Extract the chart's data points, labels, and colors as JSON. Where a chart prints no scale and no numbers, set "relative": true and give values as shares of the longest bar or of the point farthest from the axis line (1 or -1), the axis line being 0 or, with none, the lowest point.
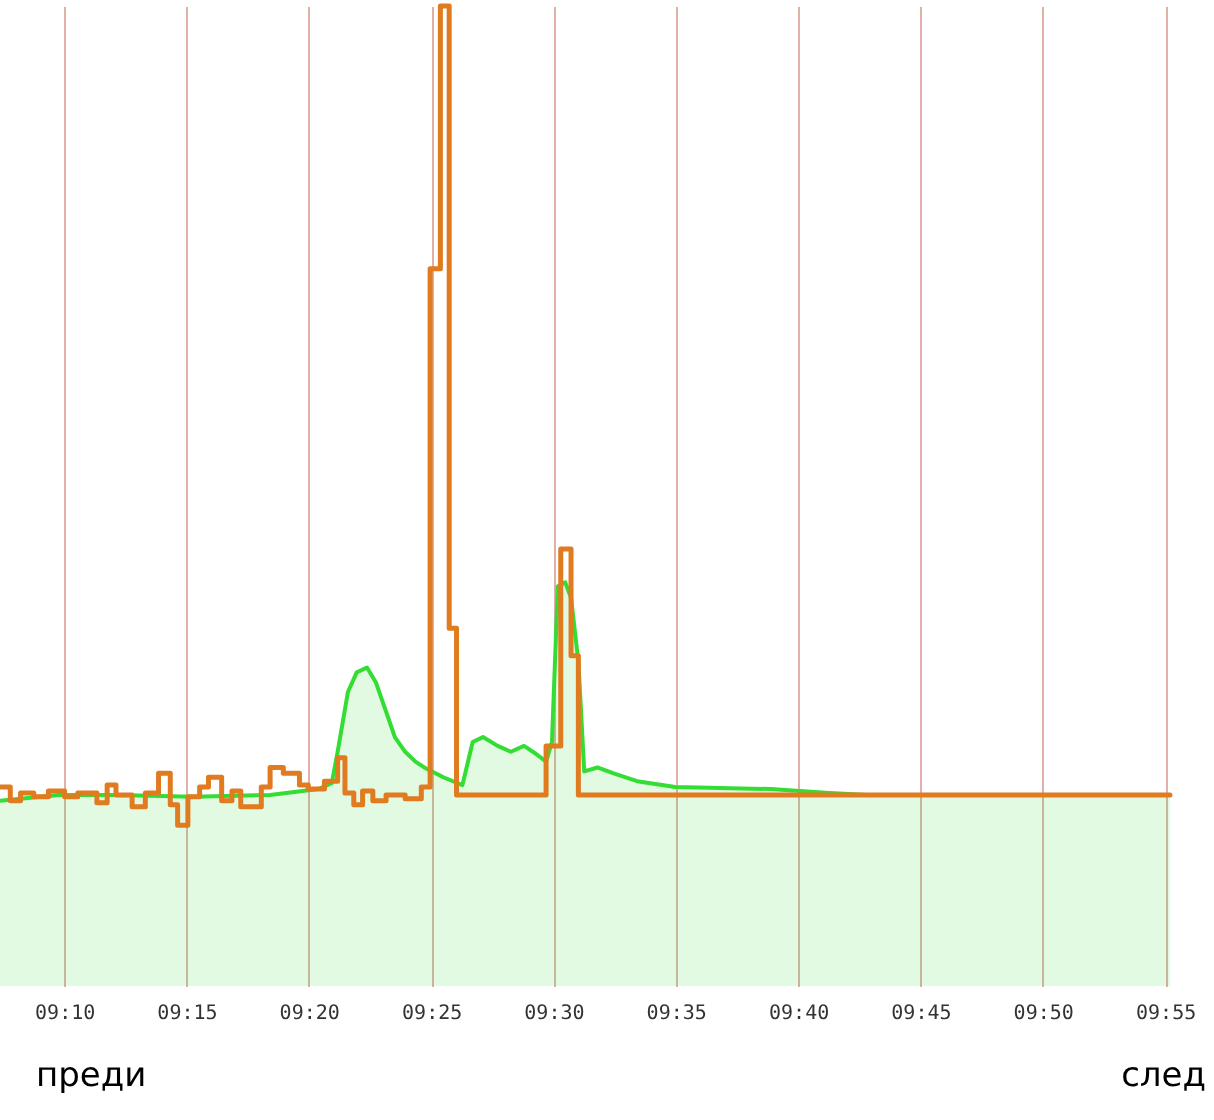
{
  "chart_data": {
    "type": "area",
    "relative": true,
    "xlim": [
      9.123,
      9.95
    ],
    "xticks": [
      {
        "value": 9.1667,
        "label": "09:10"
      },
      {
        "value": 9.25,
        "label": "09:15"
      },
      {
        "value": 9.3333,
        "label": "09:20"
      },
      {
        "value": 9.4167,
        "label": "09:25"
      },
      {
        "value": 9.5,
        "label": "09:30"
      },
      {
        "value": 9.5833,
        "label": "09:35"
      },
      {
        "value": 9.6667,
        "label": "09:40"
      },
      {
        "value": 9.75,
        "label": "09:45"
      },
      {
        "value": 9.8333,
        "label": "09:50"
      },
      {
        "value": 9.9167,
        "label": "09:55"
      }
    ],
    "grid": "x",
    "annotations": [
      "преди",
      "след"
    ],
    "series": [
      {
        "color": "#33dd33",
        "x": [
          9.123,
          9.163,
          9.202,
          9.255,
          9.307,
          9.34,
          9.349,
          9.353,
          9.36,
          9.366,
          9.373,
          9.379,
          9.386,
          9.392,
          9.399,
          9.406,
          9.412,
          9.425,
          9.438,
          9.445,
          9.452,
          9.462,
          9.471,
          9.48,
          9.488,
          9.495,
          9.499,
          9.503,
          9.508,
          9.512,
          9.517,
          9.521,
          9.53,
          9.541,
          9.557,
          9.583,
          9.648,
          9.688,
          9.714,
          9.92
        ],
        "values": [
          0.189,
          0.195,
          0.195,
          0.193,
          0.195,
          0.201,
          0.207,
          0.239,
          0.3,
          0.32,
          0.325,
          0.31,
          0.28,
          0.254,
          0.239,
          0.229,
          0.223,
          0.213,
          0.205,
          0.249,
          0.254,
          0.245,
          0.239,
          0.245,
          0.237,
          0.229,
          0.249,
          0.408,
          0.412,
          0.396,
          0.331,
          0.219,
          0.223,
          0.217,
          0.209,
          0.203,
          0.201,
          0.197,
          0.195,
          0.195
        ]
      },
      {
        "type": "step",
        "color": "#e07b20",
        "x": [
          9.123,
          9.13,
          9.137,
          9.146,
          9.156,
          9.167,
          9.176,
          9.189,
          9.196,
          9.202,
          9.213,
          9.222,
          9.231,
          9.239,
          9.244,
          9.251,
          9.259,
          9.265,
          9.274,
          9.281,
          9.287,
          9.301,
          9.307,
          9.316,
          9.327,
          9.333,
          9.344,
          9.353,
          9.358,
          9.364,
          9.37,
          9.377,
          9.386,
          9.399,
          9.41,
          9.416,
          9.423,
          9.429,
          9.434,
          9.495,
          9.505,
          9.512,
          9.517,
          9.92
        ],
        "values": [
          0.203,
          0.189,
          0.197,
          0.193,
          0.199,
          0.193,
          0.197,
          0.187,
          0.205,
          0.195,
          0.183,
          0.197,
          0.217,
          0.185,
          0.164,
          0.193,
          0.203,
          0.213,
          0.189,
          0.199,
          0.183,
          0.203,
          0.223,
          0.217,
          0.205,
          0.201,
          0.209,
          0.233,
          0.197,
          0.185,
          0.199,
          0.189,
          0.195,
          0.191,
          0.203,
          0.732,
          1,
          0.365,
          0.195,
          0.245,
          0.446,
          0.337,
          0.195,
          0.195
        ]
      }
    ]
  }
}
